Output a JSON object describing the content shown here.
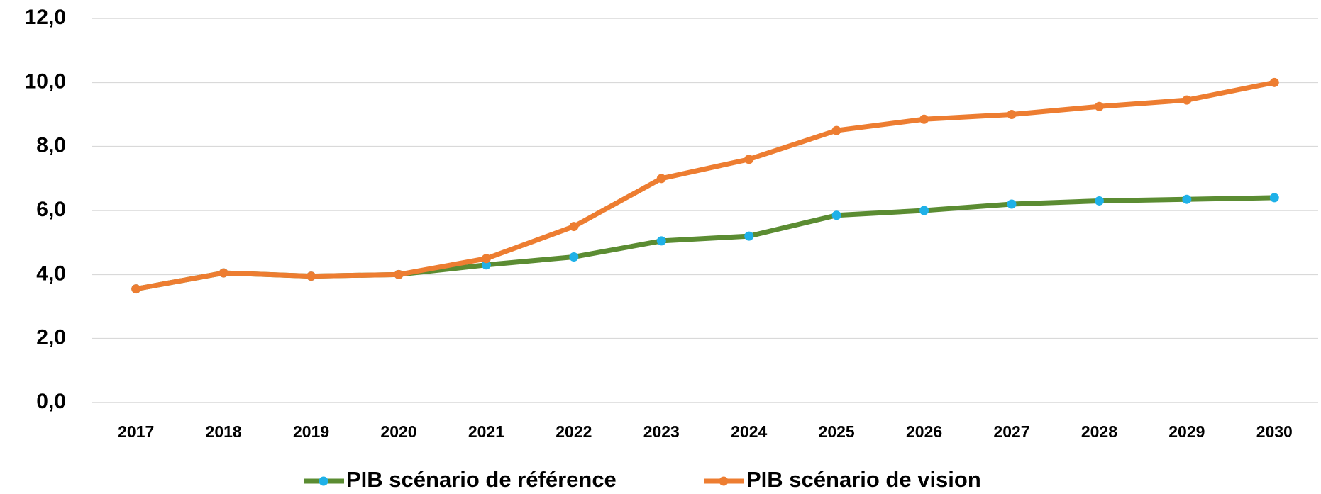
{
  "chart_data": {
    "type": "line",
    "categories": [
      "2017",
      "2018",
      "2019",
      "2020",
      "2021",
      "2022",
      "2023",
      "2024",
      "2025",
      "2026",
      "2027",
      "2028",
      "2029",
      "2030"
    ],
    "series": [
      {
        "name": "PIB scénario de référence",
        "color": "#5b8c32",
        "marker_color": "#1fb1e8",
        "values": [
          3.55,
          4.05,
          3.95,
          4.0,
          4.3,
          4.55,
          5.05,
          5.2,
          5.85,
          6.0,
          6.2,
          6.3,
          6.35,
          6.4
        ]
      },
      {
        "name": "PIB scénario de vision",
        "color": "#ed7d31",
        "marker_color": "#ed7d31",
        "values": [
          3.55,
          4.05,
          3.95,
          4.0,
          4.5,
          5.5,
          7.0,
          7.6,
          8.5,
          8.85,
          9.0,
          9.25,
          9.45,
          10.0
        ]
      }
    ],
    "ylim": [
      0,
      12
    ],
    "yticks": [
      {
        "value": 0,
        "label": "0,0"
      },
      {
        "value": 2,
        "label": "2,0"
      },
      {
        "value": 4,
        "label": "4,0"
      },
      {
        "value": 6,
        "label": "6,0"
      },
      {
        "value": 8,
        "label": "8,0"
      },
      {
        "value": 10,
        "label": "10,0"
      },
      {
        "value": 12,
        "label": "12,0"
      }
    ],
    "grid": true,
    "legend": "bottom"
  }
}
